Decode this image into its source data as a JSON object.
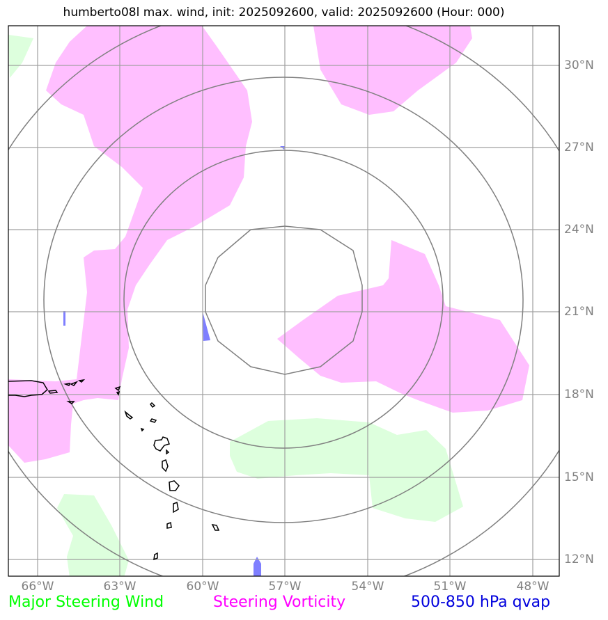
{
  "title": "humberto08l max. wind, init: 2025092600, valid: 2025092600 (Hour: 000)",
  "lat_labels": [
    "30°N",
    "27°N",
    "24°N",
    "21°N",
    "18°N",
    "15°N",
    "12°N"
  ],
  "lon_labels": [
    "66°W",
    "63°W",
    "60°W",
    "57°W",
    "54°W",
    "51°W",
    "48°W"
  ],
  "legend": {
    "steering_wind": "Major Steering Wind",
    "steering_vorticity": "Steering Vorticity",
    "qvap": "500-850 hPa qvap"
  },
  "colors": {
    "steering_wind": "#00ff00",
    "steering_vorticity": "#ff00ff",
    "qvap": "#0000dd",
    "wind_fill": "#ddffdd",
    "vorticity_fill": "#ffbfff",
    "qvap_fill": "#7f7fff",
    "grid": "#a0a0a0",
    "rings": "#808080",
    "coast": "#000000"
  },
  "map": {
    "lon_range": [
      "67°W",
      "47°W"
    ],
    "lat_range": [
      "11.4°N",
      "31.5°N"
    ],
    "range_rings_center": [
      "57°W",
      "21°N"
    ]
  }
}
